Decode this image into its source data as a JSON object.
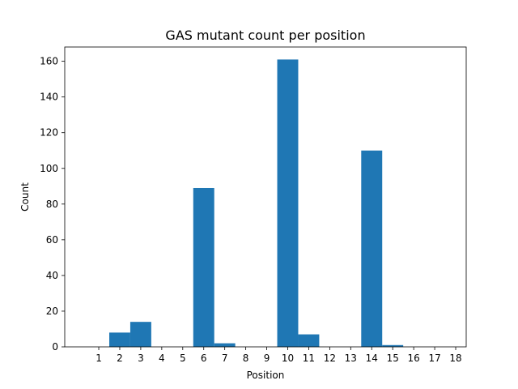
{
  "chart_data": {
    "type": "bar",
    "title": "GAS mutant count per position",
    "xlabel": "Position",
    "ylabel": "Count",
    "categories": [
      "1",
      "2",
      "3",
      "4",
      "5",
      "6",
      "7",
      "8",
      "9",
      "10",
      "11",
      "12",
      "13",
      "14",
      "15",
      "16",
      "17",
      "18"
    ],
    "values": [
      0,
      0,
      8,
      14,
      0,
      0,
      89,
      2,
      0,
      0,
      161,
      7,
      0,
      0,
      110,
      1,
      0,
      0
    ],
    "xlim": [
      -0.62,
      18.5
    ],
    "ylim": [
      0,
      168
    ],
    "yticks": [
      0,
      20,
      40,
      60,
      80,
      100,
      120,
      140,
      160
    ],
    "bar_color": "#1f77b4",
    "grid": false,
    "legend": "none"
  }
}
